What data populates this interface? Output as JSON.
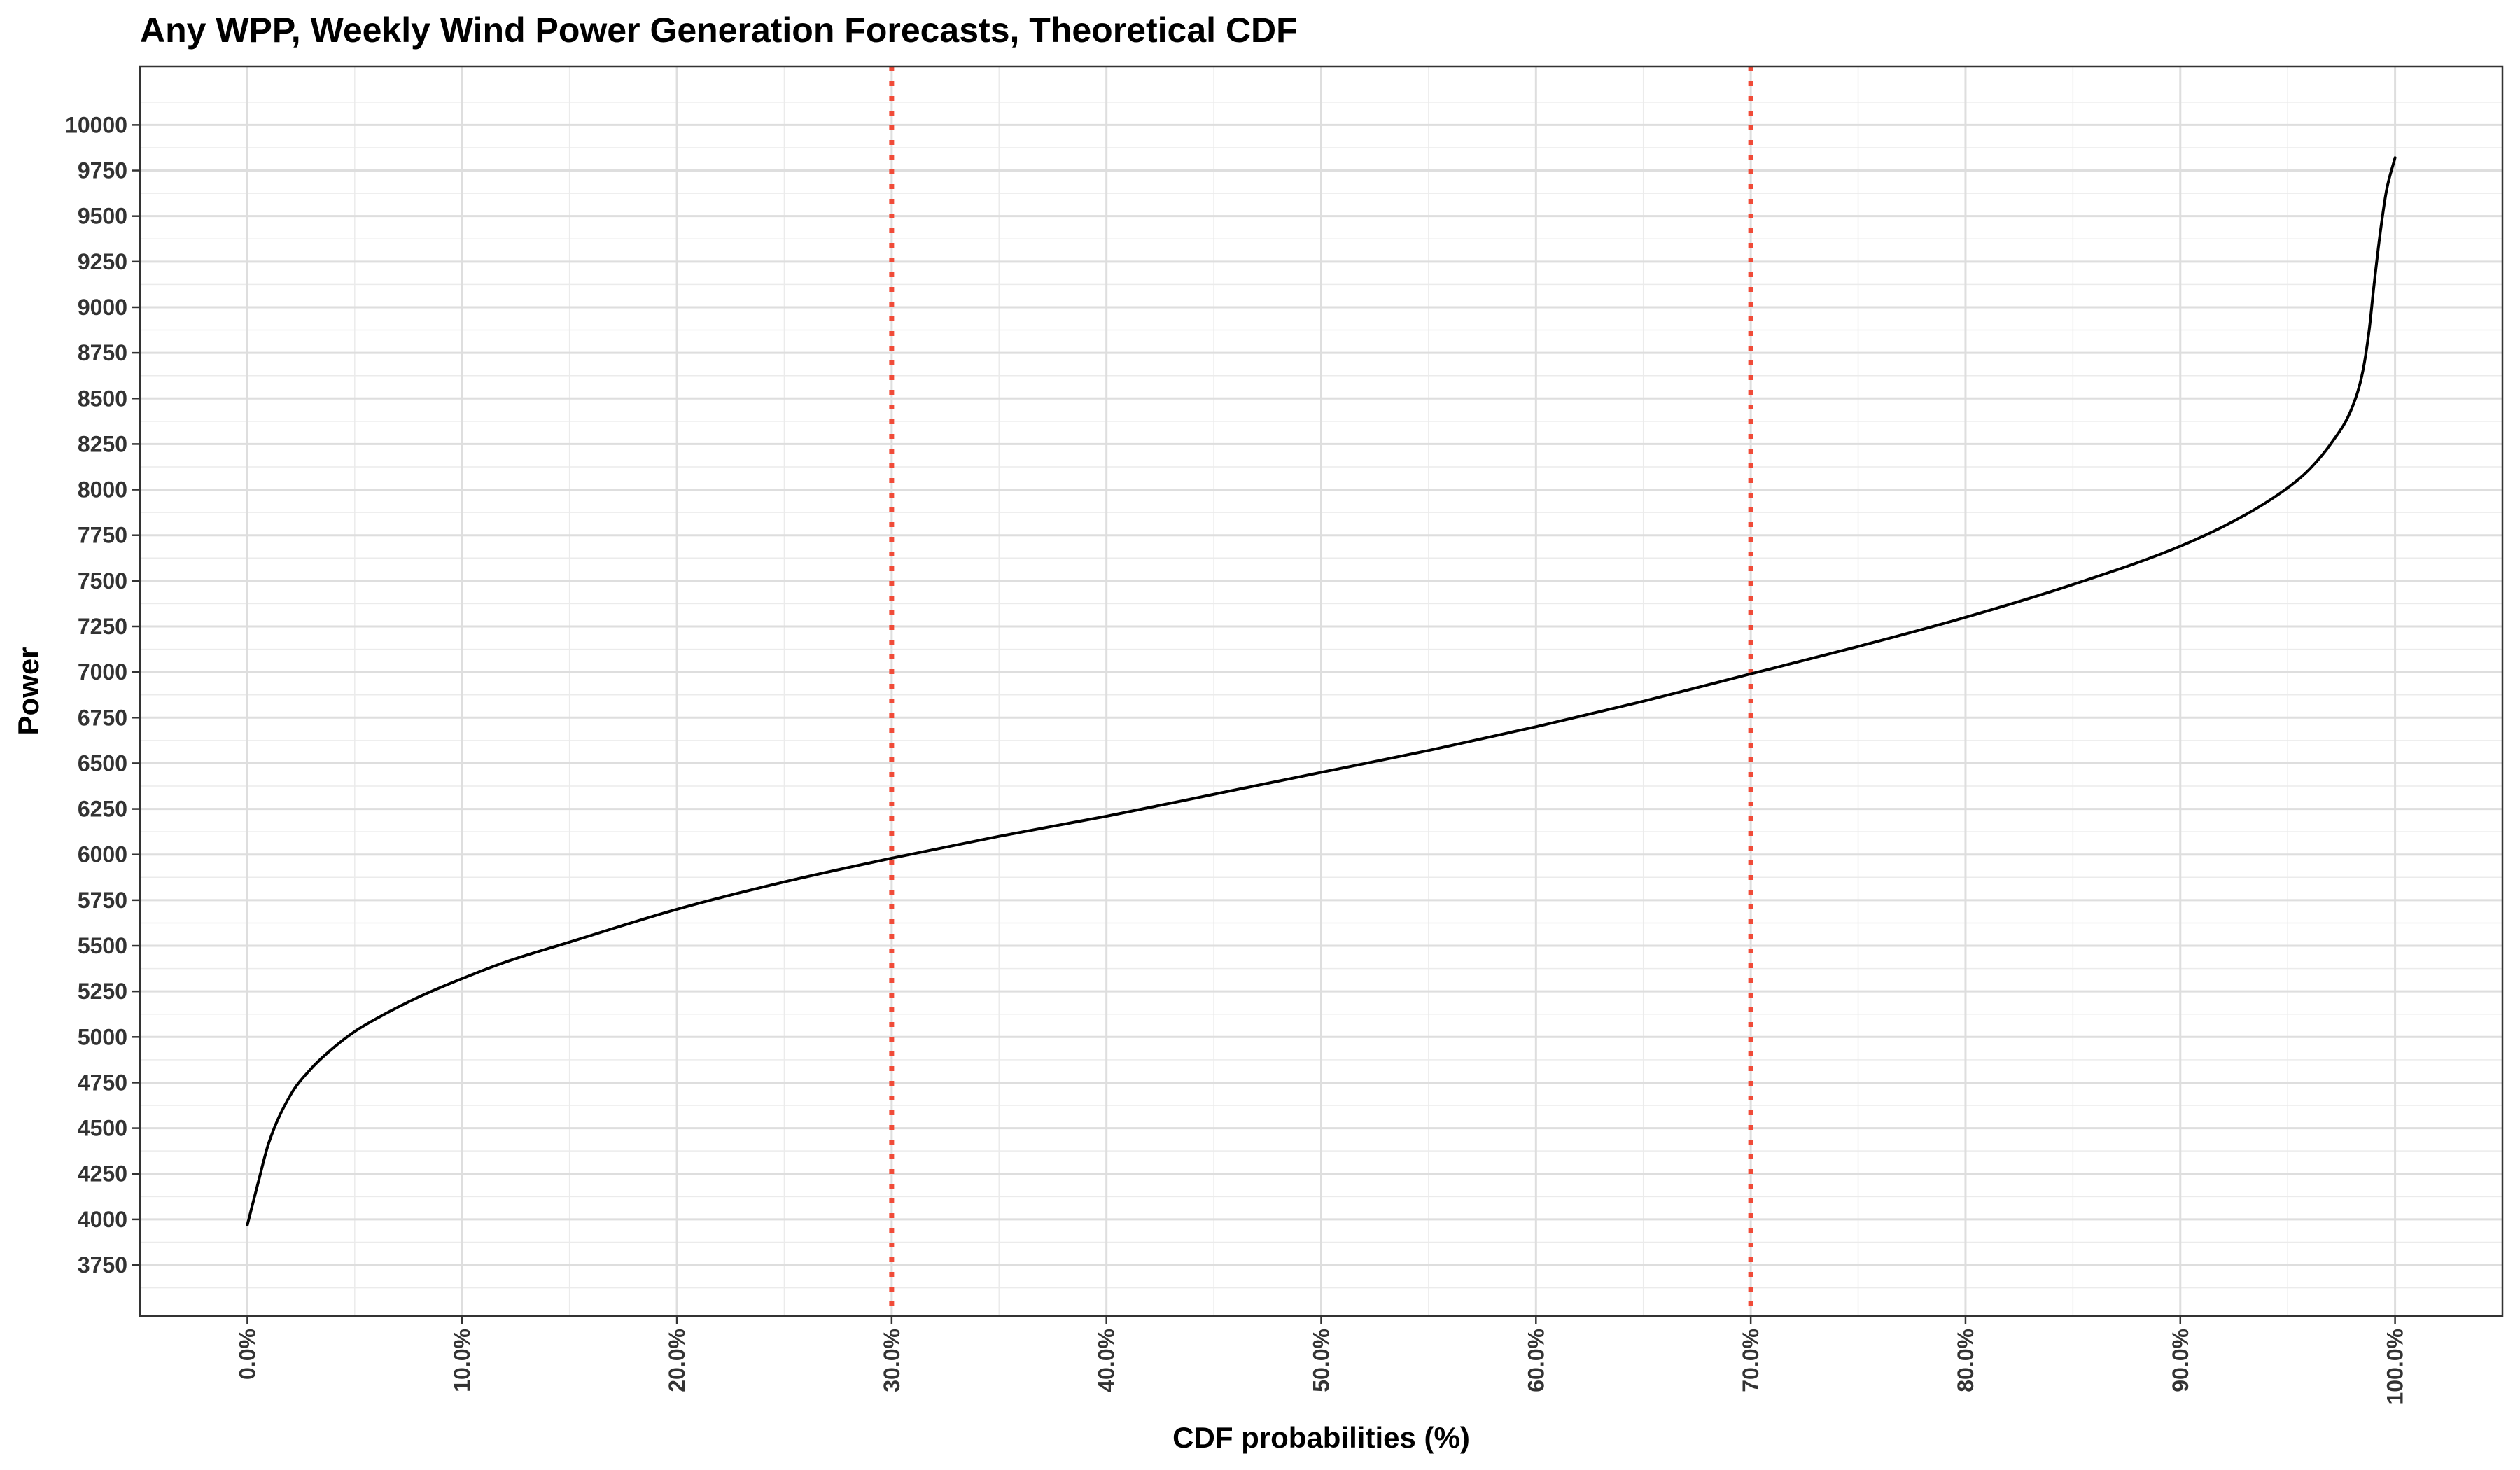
{
  "chart_data": {
    "type": "line",
    "title": "Any WPP, Weekly Wind Power Generation Forecasts, Theoretical CDF",
    "xlabel": "CDF probabilities (%)",
    "ylabel": "Power",
    "xlim": [
      -5,
      105
    ],
    "ylim": [
      3470,
      10320
    ],
    "x_ticks": [
      0,
      10,
      20,
      30,
      40,
      50,
      60,
      70,
      80,
      90,
      100
    ],
    "x_tick_labels": [
      "0.0%",
      "10.0%",
      "20.0%",
      "30.0%",
      "40.0%",
      "50.0%",
      "60.0%",
      "70.0%",
      "80.0%",
      "90.0%",
      "100.0%"
    ],
    "y_ticks": [
      3750,
      4000,
      4250,
      4500,
      4750,
      5000,
      5250,
      5500,
      5750,
      6000,
      6250,
      6500,
      6750,
      7000,
      7250,
      7500,
      7750,
      8000,
      8250,
      8500,
      8750,
      9000,
      9250,
      9500,
      9750,
      10000
    ],
    "y_tick_labels": [
      "3750",
      "4000",
      "4250",
      "4500",
      "4750",
      "5000",
      "5250",
      "5500",
      "5750",
      "6000",
      "6250",
      "6500",
      "6750",
      "7000",
      "7250",
      "7500",
      "7750",
      "8000",
      "8250",
      "8500",
      "8750",
      "9000",
      "9250",
      "9500",
      "9750",
      "10000"
    ],
    "grid": true,
    "legend": "none",
    "series": [
      {
        "color": "#000000",
        "x": [
          0,
          0.5,
          1,
          2,
          3,
          4,
          5,
          6,
          8,
          10,
          12,
          15,
          20,
          25,
          30,
          35,
          40,
          45,
          50,
          55,
          60,
          65,
          70,
          75,
          80,
          85,
          90,
          93,
          95,
          96,
          97,
          98,
          98.5,
          98.8,
          99,
          99.3,
          99.6,
          100
        ],
        "y": [
          3970,
          4200,
          4420,
          4680,
          4830,
          4940,
          5030,
          5100,
          5220,
          5320,
          5410,
          5520,
          5700,
          5850,
          5980,
          6100,
          6210,
          6330,
          6450,
          6570,
          6700,
          6840,
          6990,
          7140,
          7300,
          7480,
          7690,
          7860,
          8010,
          8110,
          8250,
          8450,
          8650,
          8880,
          9100,
          9400,
          9640,
          9820
        ]
      }
    ],
    "reference_lines": [
      {
        "axis": "x",
        "value": 30,
        "style": "dotted",
        "color": "#f04b38"
      },
      {
        "axis": "x",
        "value": 70,
        "style": "dotted",
        "color": "#f04b38"
      }
    ]
  }
}
